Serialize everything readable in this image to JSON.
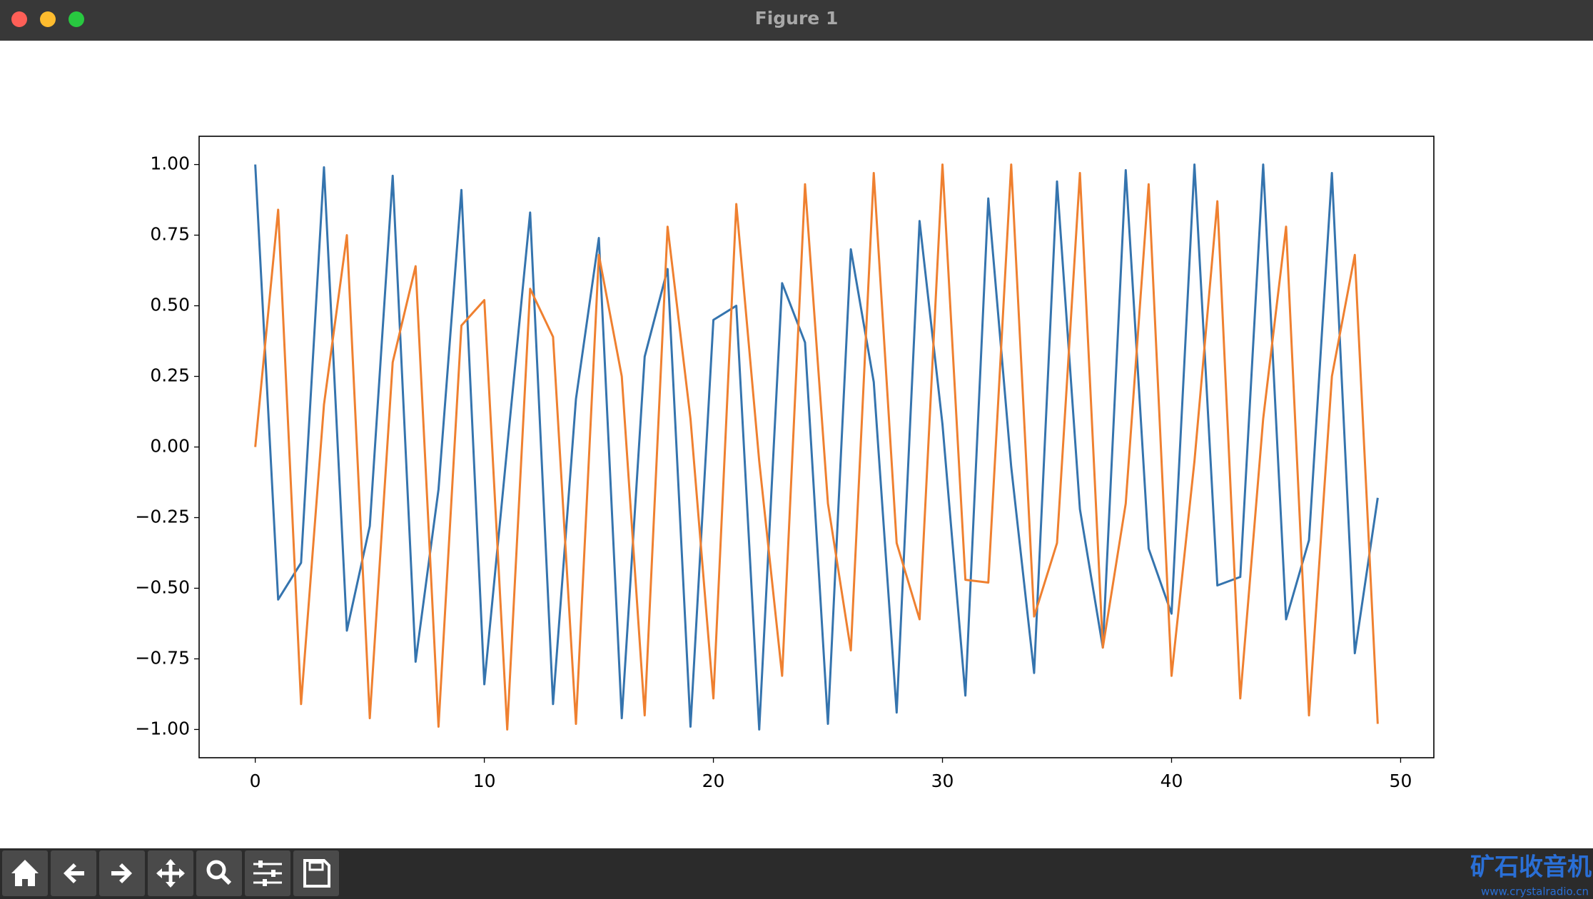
{
  "window": {
    "title": "Figure 1"
  },
  "watermark": {
    "name": "矿石收音机",
    "url": "www.crystalradio.cn"
  },
  "chart_data": {
    "type": "line",
    "x": [
      0,
      1,
      2,
      3,
      4,
      5,
      6,
      7,
      8,
      9,
      10,
      11,
      12,
      13,
      14,
      15,
      16,
      17,
      18,
      19,
      20,
      21,
      22,
      23,
      24,
      25,
      26,
      27,
      28,
      29,
      30,
      31,
      32,
      33,
      34,
      35,
      36,
      37,
      38,
      39,
      40,
      41,
      42,
      43,
      44,
      45,
      46,
      47,
      48,
      49
    ],
    "series": [
      {
        "color": "#3574ae",
        "values": [
          1.0,
          -0.54,
          -0.41,
          0.99,
          -0.65,
          -0.28,
          0.96,
          -0.76,
          -0.15,
          0.91,
          -0.84,
          0.0,
          0.83,
          -0.91,
          0.17,
          0.74,
          -0.96,
          0.32,
          0.63,
          -0.99,
          0.45,
          0.5,
          -1.0,
          0.58,
          0.37,
          -0.98,
          0.7,
          0.23,
          -0.94,
          0.8,
          0.08,
          -0.88,
          0.88,
          -0.07,
          -0.8,
          0.94,
          -0.22,
          -0.71,
          0.98,
          -0.36,
          -0.59,
          1.0,
          -0.49,
          -0.46,
          1.0,
          -0.61,
          -0.33,
          0.97,
          -0.73,
          -0.18
        ]
      },
      {
        "color": "#ef8030",
        "values": [
          0.0,
          0.84,
          -0.91,
          0.15,
          0.75,
          -0.96,
          0.3,
          0.64,
          -0.99,
          0.43,
          0.52,
          -1.0,
          0.56,
          0.39,
          -0.98,
          0.68,
          0.25,
          -0.95,
          0.78,
          0.1,
          -0.89,
          0.86,
          -0.05,
          -0.81,
          0.93,
          -0.2,
          -0.72,
          0.97,
          -0.34,
          -0.61,
          1.0,
          -0.47,
          -0.48,
          1.0,
          -0.6,
          -0.34,
          0.97,
          -0.71,
          -0.2,
          0.93,
          -0.81,
          -0.05,
          0.87,
          -0.89,
          0.1,
          0.78,
          -0.95,
          0.25,
          0.68,
          -0.98
        ]
      }
    ],
    "xlim": [
      -2.45,
      51.45
    ],
    "ylim": [
      -1.1,
      1.1
    ],
    "xticks": [
      0,
      10,
      20,
      30,
      40,
      50
    ],
    "yticks": [
      {
        "value": -1.0,
        "label": "−1.00"
      },
      {
        "value": -0.75,
        "label": "−0.75"
      },
      {
        "value": -0.5,
        "label": "−0.50"
      },
      {
        "value": -0.25,
        "label": "−0.25"
      },
      {
        "value": 0.0,
        "label": "0.00"
      },
      {
        "value": 0.25,
        "label": "0.25"
      },
      {
        "value": 0.5,
        "label": "0.50"
      },
      {
        "value": 0.75,
        "label": "0.75"
      },
      {
        "value": 1.0,
        "label": "1.00"
      }
    ]
  }
}
